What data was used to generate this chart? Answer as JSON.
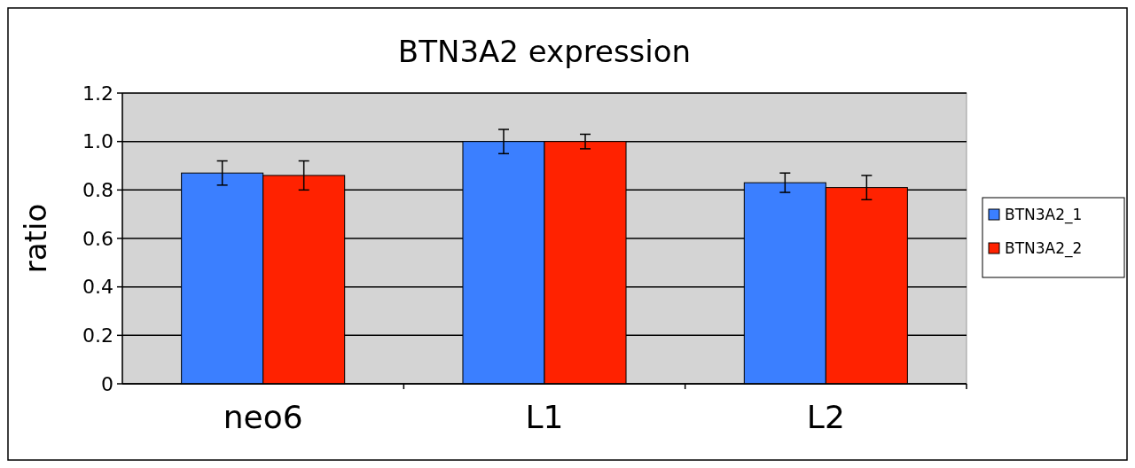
{
  "chart_data": {
    "type": "bar",
    "title": "BTN3A2 expression",
    "ylabel": "ratio",
    "categories": [
      "neo6",
      "L1",
      "L2"
    ],
    "series": [
      {
        "name": "BTN3A2_1",
        "color": "#3b7fff",
        "values": [
          0.87,
          1.0,
          0.83
        ],
        "errors": [
          0.05,
          0.05,
          0.04
        ]
      },
      {
        "name": "BTN3A2_2",
        "color": "#ff2200",
        "values": [
          0.86,
          1.0,
          0.81
        ],
        "errors": [
          0.06,
          0.03,
          0.05
        ]
      }
    ],
    "ylim": [
      0,
      1.2
    ],
    "yticks": [
      0,
      0.2,
      0.4,
      0.6,
      0.8,
      {
        "value": 1.0,
        "label": "1.0"
      },
      1.2
    ],
    "grid": "y",
    "legend": "right"
  }
}
